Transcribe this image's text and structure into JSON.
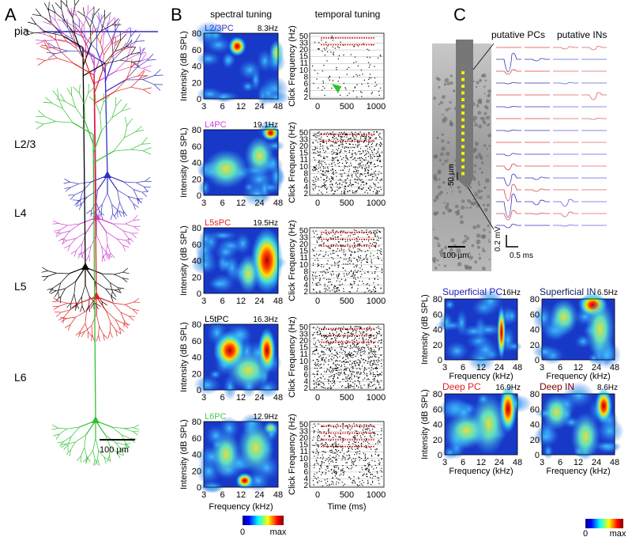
{
  "panel_a": {
    "label": "A",
    "layers": [
      "pia",
      "L2/3",
      "L4",
      "L5",
      "L6"
    ],
    "scale": "100 µm"
  },
  "panel_b": {
    "label": "B",
    "headers": [
      "spectral tuning",
      "temporal tuning"
    ],
    "cells": [
      {
        "name": "L2/3PC",
        "rate": "8.3Hz"
      },
      {
        "name": "L4PC",
        "rate": "19.1Hz"
      },
      {
        "name": "L5sPC",
        "rate": "19.5Hz"
      },
      {
        "name": "L5tPC",
        "rate": "16.3Hz"
      },
      {
        "name": "L6PC",
        "rate": "12.9Hz"
      }
    ],
    "heat_ylabel": "Intensity (dB SPL)",
    "heat_yticks": [
      "0",
      "20",
      "40",
      "60",
      "80"
    ],
    "heat_xticks": [
      "3",
      "6",
      "12",
      "24",
      "48"
    ],
    "heat_xlabel": "Frequency (kHz)",
    "raster_ylabel": "Click Frequency (Hz)",
    "raster_yticks": [
      "50",
      "33",
      "20",
      "15",
      "11",
      "10",
      "8",
      "6",
      "4",
      "2"
    ],
    "raster_xticks": [
      "0",
      "500",
      "1000"
    ],
    "raster_xlabel": "Time (ms)",
    "colorbar": [
      "0",
      "max"
    ]
  },
  "panel_c": {
    "label": "C",
    "waveform_headers": [
      "putative PCs",
      "putative INs"
    ],
    "probe_scale": "50 µm",
    "image_scale": "100 µm",
    "voltage_scale": "0.2 mV",
    "time_scale": "0.5 ms",
    "cells": [
      {
        "name": "Superficial PC",
        "rate": "16Hz"
      },
      {
        "name": "Superficial IN",
        "rate": "6.5Hz"
      },
      {
        "name": "Deep PC",
        "rate": "16.9Hz"
      },
      {
        "name": "Deep IN",
        "rate": "8.6Hz"
      }
    ],
    "ylabel": "Intensity (dB SPL)",
    "yticks": [
      "0",
      "20",
      "40",
      "60",
      "80"
    ],
    "xticks": [
      "3",
      "6",
      "12",
      "24",
      "48"
    ],
    "xlabel": "Frequency (kHz)",
    "colorbar": [
      "0",
      "max"
    ]
  }
}
